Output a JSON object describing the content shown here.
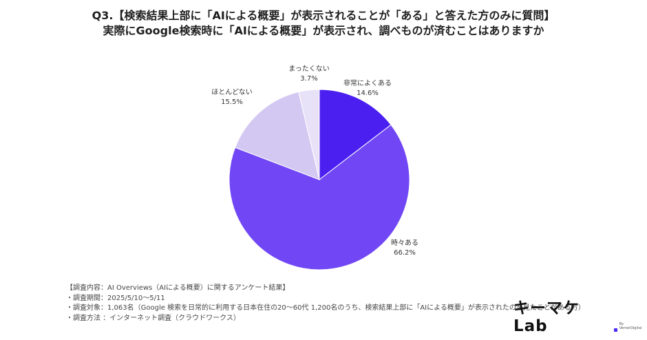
{
  "title": {
    "line1": "Q3.【検索結果上部に「AIによる概要」が表示されることが「ある」と答えた方のみに質問】",
    "line2": "実際にGoogle検索時に「AIによる概要」が表示され、調べものが済むことはありますか"
  },
  "chart_data": {
    "type": "pie",
    "categories": [
      "非常によくある",
      "時々ある",
      "ほとんどない",
      "まったくない"
    ],
    "values": [
      14.6,
      66.2,
      15.5,
      3.7
    ],
    "value_labels": [
      "14.6%",
      "66.2%",
      "15.5%",
      "3.7%"
    ],
    "colors": [
      "#4a1ff0",
      "#7147f5",
      "#d3c8f2",
      "#e8e2f8"
    ]
  },
  "notes": [
    "【調査内容：AI Overviews（AIによる概要）に関するアンケート結果】",
    "・調査期間：2025/5/10〜5/11",
    "・調査対象：1,063名（Google 検索を日常的に利用する日本在住の20〜60代 1,200名のうち、検索結果上部に「AIによる概要」が表示されたのを見たことがある方）",
    "・調査方法 ：インターネット調査（クラウドワークス）"
  ],
  "logo": {
    "text": "キーマケLab",
    "sub": "By VernerDigital"
  }
}
